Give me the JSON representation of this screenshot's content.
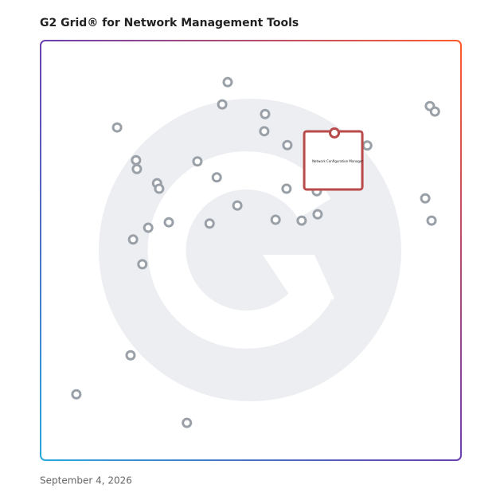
{
  "chart_data": {
    "type": "scatter",
    "title": "G2 Grid® for Network Management Tools",
    "date": "September 4, 2026",
    "xlim": [
      0,
      100
    ],
    "ylim": [
      0,
      100
    ],
    "color": "#9aa0a8",
    "x": [
      44.5,
      43.2,
      18.2,
      53.4,
      53.2,
      58.7,
      77.7,
      92.6,
      93.8,
      22.7,
      22.9,
      37.3,
      41.9,
      27.7,
      28.2,
      58.5,
      65.7,
      91.5,
      46.8,
      55.9,
      62.1,
      65.9,
      93.0,
      30.5,
      40.2,
      25.6,
      22.0,
      24.2,
      21.4,
      8.5,
      34.8
    ],
    "y": [
      90.1,
      84.8,
      79.3,
      82.5,
      78.4,
      75.1,
      75.0,
      84.4,
      83.1,
      71.5,
      69.4,
      71.2,
      67.4,
      66.0,
      64.7,
      64.7,
      64.1,
      62.4,
      60.7,
      57.3,
      57.1,
      58.6,
      57.1,
      56.7,
      56.4,
      55.4,
      52.6,
      46.7,
      25.0,
      15.7,
      8.9
    ],
    "highlight": {
      "label": "Network Configuration Manager",
      "x": 69.9,
      "y": 78.0,
      "color": "#b94a4a"
    }
  }
}
